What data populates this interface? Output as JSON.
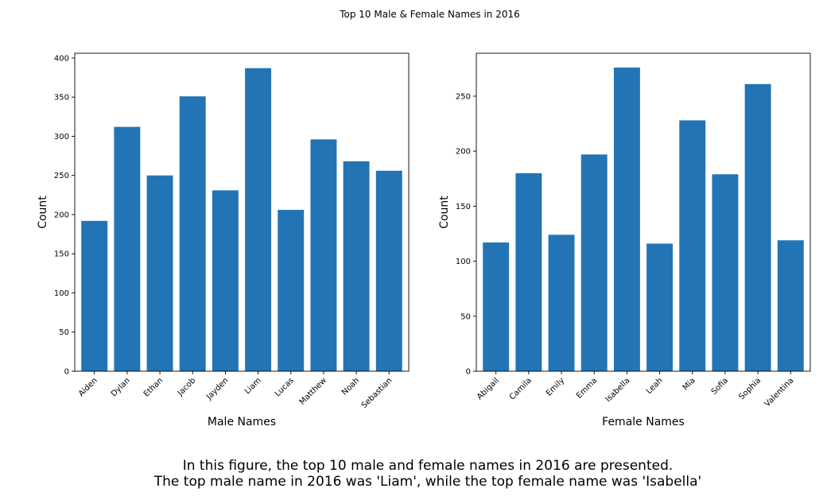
{
  "figure": {
    "title": "Top 10 Male & Female Names in 2016",
    "caption_line1": "In this figure, the top 10 male and female names in 2016 are presented.",
    "caption_line2": "The top male name in 2016 was 'Liam', while the top female name was 'Isabella'"
  },
  "chart_data": [
    {
      "type": "bar",
      "title": "",
      "xlabel": "Male Names",
      "ylabel": "Count",
      "categories": [
        "Aiden",
        "Dylan",
        "Ethan",
        "Jacob",
        "Jayden",
        "Liam",
        "Lucas",
        "Matthew",
        "Noah",
        "Sebastian"
      ],
      "values": [
        192,
        312,
        250,
        351,
        231,
        387,
        206,
        296,
        268,
        256
      ],
      "ylim": [
        0,
        406
      ],
      "yticks": [
        0,
        50,
        100,
        150,
        200,
        250,
        300,
        350,
        400
      ],
      "color": "#2274b5",
      "grid": false
    },
    {
      "type": "bar",
      "title": "",
      "xlabel": "Female Names",
      "ylabel": "Count",
      "categories": [
        "Abigail",
        "Camila",
        "Emily",
        "Emma",
        "Isabella",
        "Leah",
        "Mia",
        "Sofia",
        "Sophia",
        "Valentina"
      ],
      "values": [
        117,
        180,
        124,
        197,
        276,
        116,
        228,
        179,
        261,
        119
      ],
      "ylim": [
        0,
        289
      ],
      "yticks": [
        0,
        50,
        100,
        150,
        200,
        250
      ],
      "color": "#2274b5",
      "grid": false
    }
  ]
}
